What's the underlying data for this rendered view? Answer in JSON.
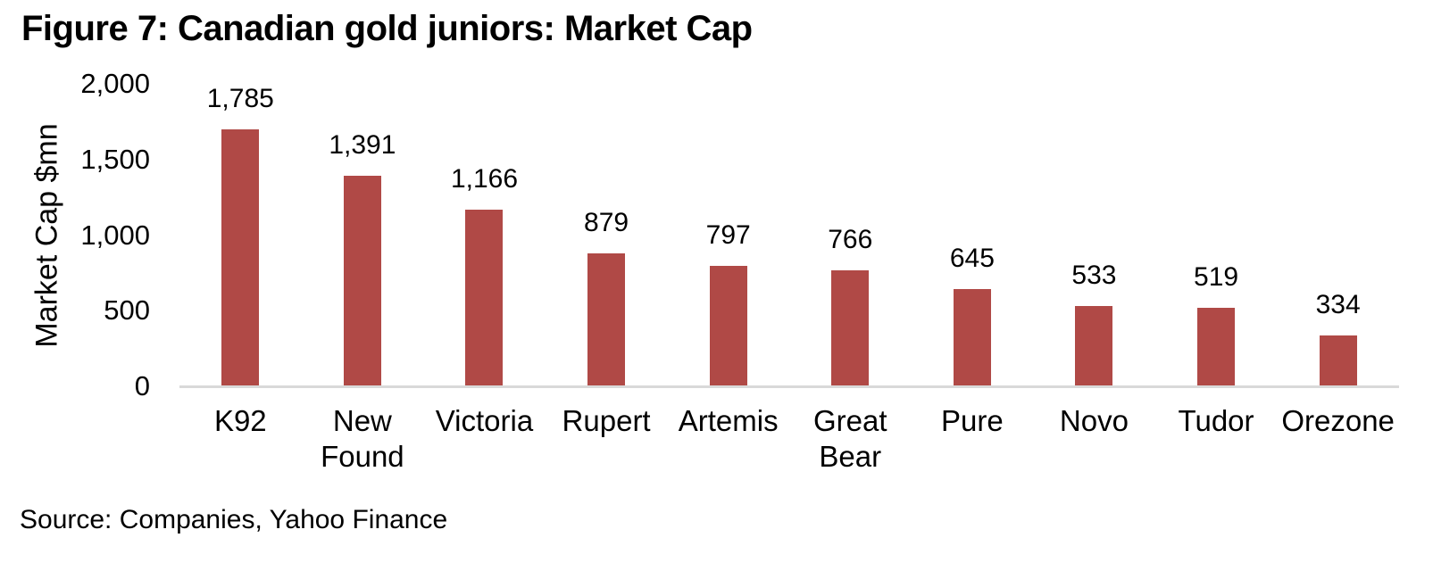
{
  "figure": {
    "title": "Figure 7: Canadian gold juniors: Market Cap",
    "source": "Source: Companies, Yahoo Finance"
  },
  "chart_data": {
    "type": "bar",
    "title": "Figure 7: Canadian gold juniors: Market Cap",
    "categories": [
      "K92",
      "New Found",
      "Victoria",
      "Rupert",
      "Artemis",
      "Great Bear",
      "Pure",
      "Novo",
      "Tudor",
      "Orezone"
    ],
    "values": [
      1785,
      1391,
      1166,
      879,
      797,
      766,
      645,
      533,
      519,
      334
    ],
    "value_labels": [
      "1,785",
      "1,391",
      "1,166",
      "879",
      "797",
      "766",
      "645",
      "533",
      "519",
      "334"
    ],
    "xlabel": "",
    "ylabel": "Market Cap $mn",
    "ylim": [
      0,
      2000
    ],
    "yticks": [
      0,
      500,
      1000,
      1500,
      2000
    ],
    "ytick_labels": [
      "0",
      "500",
      "1,000",
      "1,500",
      "2,000"
    ],
    "grid": false,
    "legend_position": "none",
    "bar_color": "#B04946",
    "axis_line_color": "#D9D9D9",
    "text_color": "#000000",
    "source": "Source: Companies, Yahoo Finance"
  }
}
